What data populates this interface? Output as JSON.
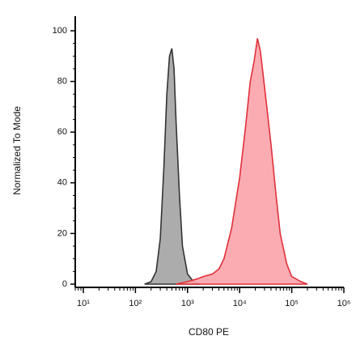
{
  "chart_data": {
    "type": "histogram-overlay",
    "xlabel": "CD80 PE",
    "ylabel": "Normalized To Mode",
    "xscale": "log",
    "xlim": [
      7,
      1000000
    ],
    "ylim": [
      0,
      100
    ],
    "xticks": [
      {
        "value": 10,
        "label": "10¹"
      },
      {
        "value": 100,
        "label": "10²"
      },
      {
        "value": 1000,
        "label": "10³"
      },
      {
        "value": 10000,
        "label": "10⁴"
      },
      {
        "value": 100000,
        "label": "10⁵"
      },
      {
        "value": 1000000,
        "label": "10⁶"
      }
    ],
    "yticks": [
      0,
      20,
      40,
      60,
      80,
      100
    ],
    "series": [
      {
        "color": "#a3a3a3",
        "edge": "#333333",
        "x": [
          150,
          200,
          250,
          300,
          350,
          400,
          450,
          500,
          550,
          600,
          700,
          800,
          1000,
          1300,
          1700
        ],
        "values": [
          0,
          1,
          5,
          18,
          45,
          75,
          90,
          93,
          85,
          65,
          35,
          15,
          4,
          1,
          0
        ]
      },
      {
        "color": "#f9a3aa",
        "edge": "#e0303a",
        "x": [
          600,
          1000,
          1500,
          2000,
          3000,
          4000,
          5000,
          7000,
          10000,
          13000,
          16000,
          19000,
          22000,
          25000,
          30000,
          40000,
          50000,
          60000,
          80000,
          100000,
          150000,
          200000
        ],
        "values": [
          0,
          1,
          2,
          3,
          4,
          6,
          10,
          22,
          42,
          62,
          80,
          88,
          97,
          92,
          78,
          55,
          35,
          20,
          8,
          3,
          1,
          0
        ]
      }
    ]
  }
}
